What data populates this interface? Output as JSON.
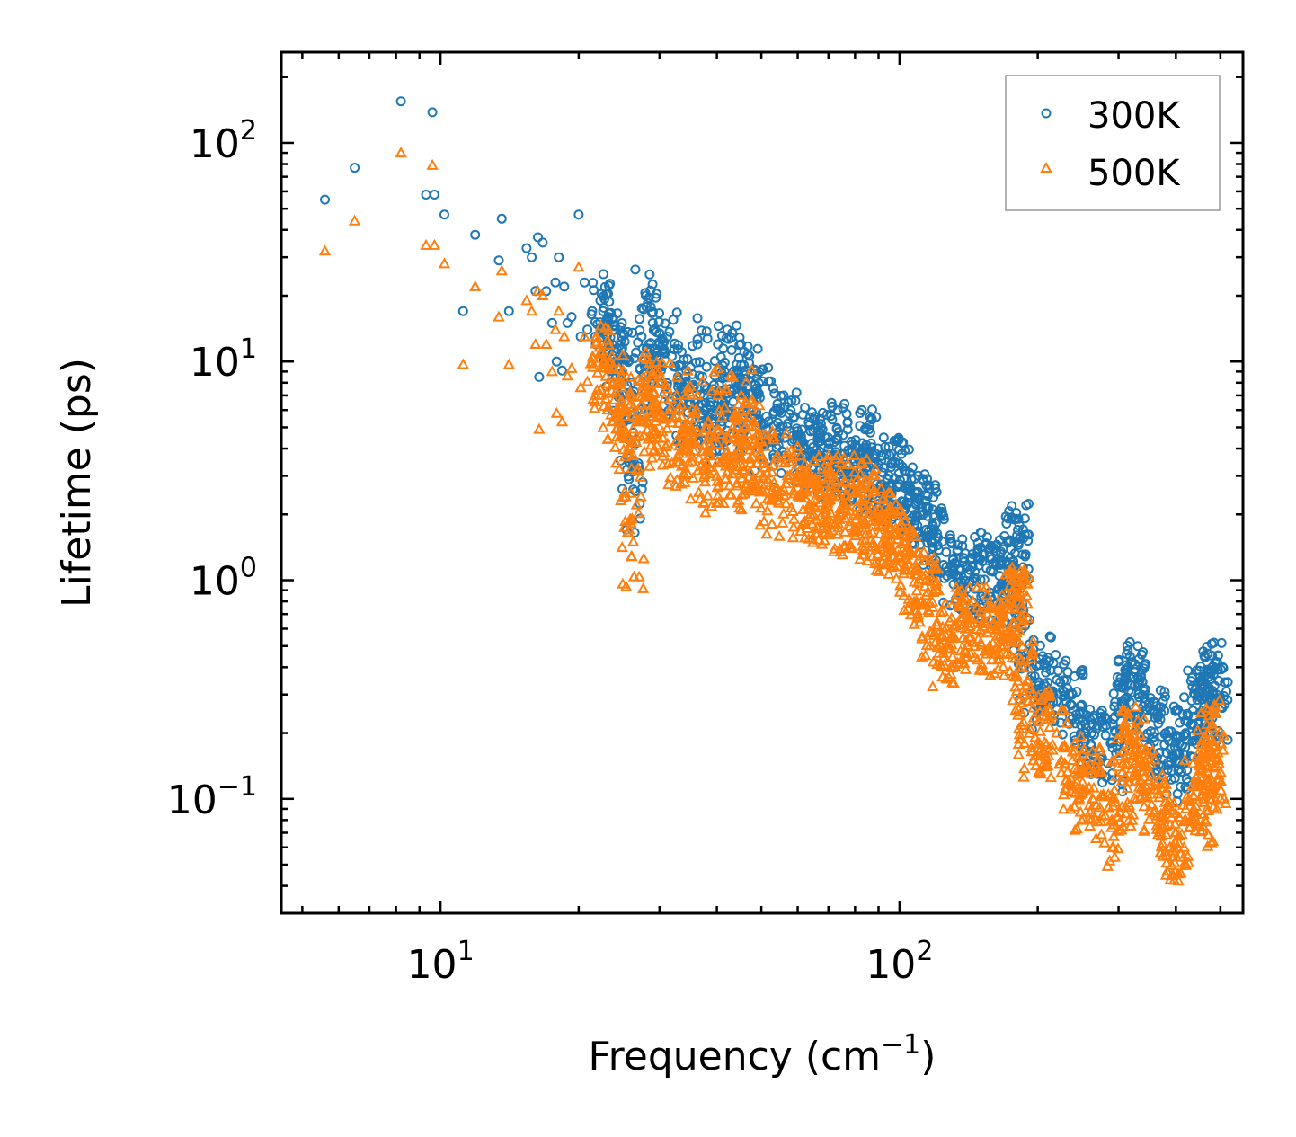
{
  "chart_data": {
    "type": "scatter",
    "xscale": "log",
    "yscale": "log",
    "xlabel": "Frequency (cm",
    "xlabel_sup": "−1",
    "xlabel_tail": ")",
    "ylabel": "Lifetime (ps)",
    "xlim": [
      4.5,
      560
    ],
    "ylim": [
      0.03,
      260
    ],
    "x_ticks": [
      {
        "value": 10,
        "base": "10",
        "exp": "1"
      },
      {
        "value": 100,
        "base": "10",
        "exp": "2"
      }
    ],
    "y_ticks": [
      {
        "value": 0.1,
        "base": "10",
        "exp": "−1"
      },
      {
        "value": 1,
        "base": "10",
        "exp": "0"
      },
      {
        "value": 10,
        "base": "10",
        "exp": "1"
      },
      {
        "value": 100,
        "base": "10",
        "exp": "2"
      }
    ],
    "legend_position": "top-right",
    "series": [
      {
        "name": "300K",
        "marker": "circle",
        "color": "#1f77b4",
        "points": [
          [
            5.6,
            55
          ],
          [
            6.5,
            77
          ],
          [
            8.2,
            155
          ],
          [
            9.3,
            58
          ],
          [
            9.6,
            138
          ],
          [
            9.7,
            58
          ],
          [
            10.2,
            47
          ],
          [
            11.2,
            17
          ],
          [
            11.9,
            38
          ],
          [
            13.4,
            29
          ],
          [
            13.6,
            45
          ],
          [
            14.1,
            17
          ],
          [
            15.4,
            33
          ],
          [
            15.8,
            30
          ],
          [
            16.1,
            21
          ],
          [
            16.3,
            37
          ],
          [
            16.4,
            8.5
          ],
          [
            16.7,
            35
          ],
          [
            17.0,
            21
          ],
          [
            17.5,
            15
          ],
          [
            17.8,
            23
          ],
          [
            17.9,
            10
          ],
          [
            18.1,
            30
          ],
          [
            18.4,
            9.1
          ],
          [
            18.6,
            22
          ],
          [
            18.9,
            15
          ],
          [
            19.3,
            16
          ],
          [
            20.0,
            47
          ],
          [
            20.2,
            13
          ],
          [
            20.6,
            23
          ],
          [
            20.9,
            14
          ],
          [
            21.4,
            17
          ],
          [
            21.8,
            12
          ],
          [
            22.3,
            19
          ],
          [
            22.6,
            17
          ],
          [
            23.2,
            16
          ],
          [
            23.8,
            14
          ],
          [
            24.3,
            10
          ],
          [
            24.8,
            13
          ],
          [
            25.5,
            7.8
          ],
          [
            26.0,
            4.3
          ],
          [
            26.3,
            2.6
          ],
          [
            27.2,
            9.3
          ],
          [
            28.0,
            20
          ],
          [
            28.4,
            12
          ],
          [
            29.0,
            15
          ],
          [
            29.6,
            11
          ],
          [
            30.4,
            9.5
          ],
          [
            31.2,
            13
          ],
          [
            32.2,
            9.5
          ],
          [
            33.1,
            7.1
          ],
          [
            34.2,
            8.5
          ],
          [
            35.0,
            6.5
          ],
          [
            36.3,
            12
          ],
          [
            37.1,
            5.8
          ],
          [
            38.6,
            6.3
          ],
          [
            39.4,
            7.8
          ],
          [
            40.2,
            12
          ],
          [
            41.5,
            6.3
          ],
          [
            43.0,
            5.9
          ],
          [
            44.5,
            7.5
          ],
          [
            45.2,
            12
          ],
          [
            45.8,
            9.6
          ],
          [
            47.0,
            7.1
          ],
          [
            48.2,
            9.2
          ],
          [
            49.0,
            7.3
          ],
          [
            50.5,
            5.2
          ],
          [
            52.4,
            4.3
          ],
          [
            54.2,
            6.4
          ],
          [
            57.0,
            5.2
          ],
          [
            59.0,
            5.6
          ],
          [
            61.5,
            4.3
          ],
          [
            64.0,
            4.8
          ],
          [
            67.0,
            4.5
          ],
          [
            70.0,
            4.0
          ],
          [
            73.0,
            4.9
          ],
          [
            76.0,
            3.8
          ],
          [
            80.0,
            3.5
          ],
          [
            84.0,
            4.9
          ],
          [
            88.0,
            3.4
          ],
          [
            92.0,
            3.1
          ],
          [
            96.0,
            3.4
          ],
          [
            100.0,
            3.4
          ],
          [
            104.0,
            2.6
          ],
          [
            108.0,
            2.4
          ],
          [
            114.0,
            2.3
          ],
          [
            118.0,
            1.8
          ],
          [
            124.0,
            1.5
          ],
          [
            132.0,
            1.2
          ],
          [
            140.0,
            1.15
          ],
          [
            150.0,
            1.25
          ],
          [
            158.0,
            1.1
          ],
          [
            166.0,
            1.2
          ],
          [
            172.0,
            1.05
          ],
          [
            178.0,
            1.5
          ],
          [
            181.0,
            1.7
          ],
          [
            185.0,
            0.6
          ],
          [
            192.0,
            0.35
          ],
          [
            205.0,
            0.45
          ],
          [
            220.0,
            0.35
          ],
          [
            238.0,
            0.3
          ],
          [
            255.0,
            0.21
          ],
          [
            262.0,
            0.2
          ],
          [
            290.0,
            0.18
          ],
          [
            305.0,
            0.28
          ],
          [
            315.0,
            0.4
          ],
          [
            325.0,
            0.38
          ],
          [
            340.0,
            0.32
          ],
          [
            360.0,
            0.25
          ],
          [
            380.0,
            0.2
          ],
          [
            400.0,
            0.16
          ],
          [
            420.0,
            0.2
          ],
          [
            440.0,
            0.3
          ],
          [
            460.0,
            0.25
          ],
          [
            470.0,
            0.38
          ],
          [
            480.0,
            0.4
          ],
          [
            490.0,
            0.3
          ]
        ]
      },
      {
        "name": "500K",
        "marker": "triangle",
        "color": "#ff7f0e",
        "points": [
          [
            5.6,
            32
          ],
          [
            6.5,
            44
          ],
          [
            8.2,
            90
          ],
          [
            9.3,
            34
          ],
          [
            9.6,
            79
          ],
          [
            9.7,
            34
          ],
          [
            10.2,
            28
          ],
          [
            11.2,
            9.7
          ],
          [
            11.9,
            22
          ],
          [
            13.4,
            16
          ],
          [
            13.6,
            26
          ],
          [
            14.1,
            9.7
          ],
          [
            15.4,
            19
          ],
          [
            15.8,
            17
          ],
          [
            16.1,
            12
          ],
          [
            16.3,
            21
          ],
          [
            16.4,
            4.9
          ],
          [
            16.7,
            20
          ],
          [
            17.0,
            12
          ],
          [
            17.5,
            9.0
          ],
          [
            17.8,
            14
          ],
          [
            17.9,
            5.8
          ],
          [
            18.1,
            17
          ],
          [
            18.4,
            5.3
          ],
          [
            18.6,
            13
          ],
          [
            18.9,
            8.6
          ],
          [
            19.3,
            9.3
          ],
          [
            20.0,
            27
          ],
          [
            20.2,
            7.6
          ],
          [
            20.6,
            13
          ],
          [
            20.9,
            8.1
          ],
          [
            21.4,
            9.9
          ],
          [
            21.8,
            7.0
          ],
          [
            22.3,
            11
          ],
          [
            22.6,
            9.9
          ],
          [
            23.2,
            9.3
          ],
          [
            23.8,
            8.1
          ],
          [
            24.3,
            5.8
          ],
          [
            24.8,
            7.6
          ],
          [
            25.5,
            4.5
          ],
          [
            26.0,
            2.5
          ],
          [
            26.3,
            1.5
          ],
          [
            27.2,
            5.4
          ],
          [
            28.0,
            7.9
          ],
          [
            28.4,
            7.0
          ],
          [
            29.0,
            8.7
          ],
          [
            29.6,
            6.4
          ],
          [
            30.4,
            5.5
          ],
          [
            31.2,
            7.5
          ],
          [
            32.2,
            5.5
          ],
          [
            33.1,
            4.1
          ],
          [
            34.2,
            4.9
          ],
          [
            35.0,
            3.8
          ],
          [
            36.3,
            7.0
          ],
          [
            37.1,
            3.4
          ],
          [
            38.6,
            3.7
          ],
          [
            39.4,
            4.5
          ],
          [
            40.2,
            7.0
          ],
          [
            41.5,
            3.7
          ],
          [
            43.0,
            3.4
          ],
          [
            44.5,
            4.4
          ],
          [
            45.2,
            7.0
          ],
          [
            45.8,
            5.6
          ],
          [
            47.0,
            4.1
          ],
          [
            48.2,
            5.3
          ],
          [
            49.0,
            4.2
          ],
          [
            50.5,
            3.0
          ],
          [
            52.4,
            2.5
          ],
          [
            54.2,
            3.7
          ],
          [
            57.0,
            3.0
          ],
          [
            59.0,
            3.2
          ],
          [
            61.5,
            2.5
          ],
          [
            64.0,
            2.8
          ],
          [
            67.0,
            2.6
          ],
          [
            70.0,
            2.3
          ],
          [
            73.0,
            2.8
          ],
          [
            76.0,
            2.2
          ],
          [
            80.0,
            2.0
          ],
          [
            84.0,
            2.8
          ],
          [
            88.0,
            2.0
          ],
          [
            92.0,
            1.8
          ],
          [
            96.0,
            2.0
          ],
          [
            100.0,
            1.6
          ],
          [
            104.0,
            1.3
          ],
          [
            108.0,
            1.1
          ],
          [
            114.0,
            1.0
          ],
          [
            118.0,
            0.75
          ],
          [
            124.0,
            0.55
          ],
          [
            132.0,
            0.62
          ],
          [
            140.0,
            0.7
          ],
          [
            150.0,
            0.72
          ],
          [
            158.0,
            0.6
          ],
          [
            166.0,
            0.65
          ],
          [
            172.0,
            0.58
          ],
          [
            178.0,
            0.85
          ],
          [
            181.0,
            0.95
          ],
          [
            185.0,
            0.4
          ],
          [
            192.0,
            0.21
          ],
          [
            205.0,
            0.24
          ],
          [
            220.0,
            0.2
          ],
          [
            238.0,
            0.15
          ],
          [
            255.0,
            0.11
          ],
          [
            262.0,
            0.13
          ],
          [
            290.0,
            0.08
          ],
          [
            305.0,
            0.12
          ],
          [
            315.0,
            0.2
          ],
          [
            325.0,
            0.18
          ],
          [
            340.0,
            0.14
          ],
          [
            360.0,
            0.11
          ],
          [
            380.0,
            0.09
          ],
          [
            400.0,
            0.07
          ],
          [
            420.0,
            0.08
          ],
          [
            440.0,
            0.12
          ],
          [
            460.0,
            0.1
          ],
          [
            470.0,
            0.2
          ],
          [
            480.0,
            0.22
          ],
          [
            490.0,
            0.15
          ]
        ]
      }
    ]
  }
}
